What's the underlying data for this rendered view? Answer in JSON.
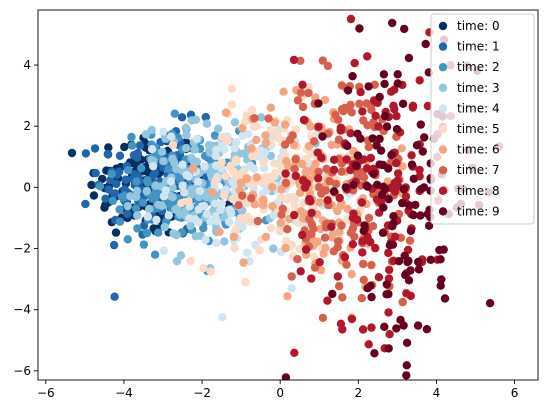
{
  "chart_data": {
    "type": "scatter",
    "title": "",
    "xlabel": "",
    "ylabel": "",
    "xlim": [
      -6.2,
      6.6
    ],
    "ylim": [
      -6.3,
      5.8
    ],
    "x_ticks": [
      -6,
      -4,
      -2,
      0,
      2,
      4,
      6
    ],
    "y_ticks": [
      -6,
      -4,
      -2,
      0,
      2,
      4
    ],
    "grid": false,
    "legend_position": "top-right",
    "series": [
      {
        "name": "time: 0",
        "color": "#053061",
        "center": [
          -3.4,
          0.1
        ],
        "spread": [
          0.75,
          0.9
        ],
        "count": 140
      },
      {
        "name": "time: 1",
        "color": "#2166ac",
        "center": [
          -3.0,
          0.2
        ],
        "spread": [
          0.8,
          0.9
        ],
        "count": 140
      },
      {
        "name": "time: 2",
        "color": "#4393c3",
        "center": [
          -2.6,
          0.0
        ],
        "spread": [
          0.8,
          0.95
        ],
        "count": 140
      },
      {
        "name": "time: 3",
        "color": "#92c5de",
        "center": [
          -1.8,
          0.1
        ],
        "spread": [
          0.9,
          1.0
        ],
        "count": 140
      },
      {
        "name": "time: 4",
        "color": "#d1e5f0",
        "center": [
          -1.0,
          0.0
        ],
        "spread": [
          0.95,
          1.1
        ],
        "count": 140
      },
      {
        "name": "time: 5",
        "color": "#fddbc7",
        "center": [
          -0.2,
          0.1
        ],
        "spread": [
          1.0,
          1.3
        ],
        "count": 140
      },
      {
        "name": "time: 6",
        "color": "#f4a582",
        "center": [
          0.9,
          0.2
        ],
        "spread": [
          1.0,
          1.7
        ],
        "count": 140
      },
      {
        "name": "time: 7",
        "color": "#d6604d",
        "center": [
          1.7,
          0.0
        ],
        "spread": [
          1.0,
          2.0
        ],
        "count": 140
      },
      {
        "name": "time: 8",
        "color": "#b2182b",
        "center": [
          2.4,
          0.3
        ],
        "spread": [
          1.0,
          2.4
        ],
        "count": 140
      },
      {
        "name": "time: 9",
        "color": "#67001f",
        "center": [
          3.2,
          -0.1
        ],
        "spread": [
          0.95,
          2.9
        ],
        "count": 140
      }
    ]
  }
}
